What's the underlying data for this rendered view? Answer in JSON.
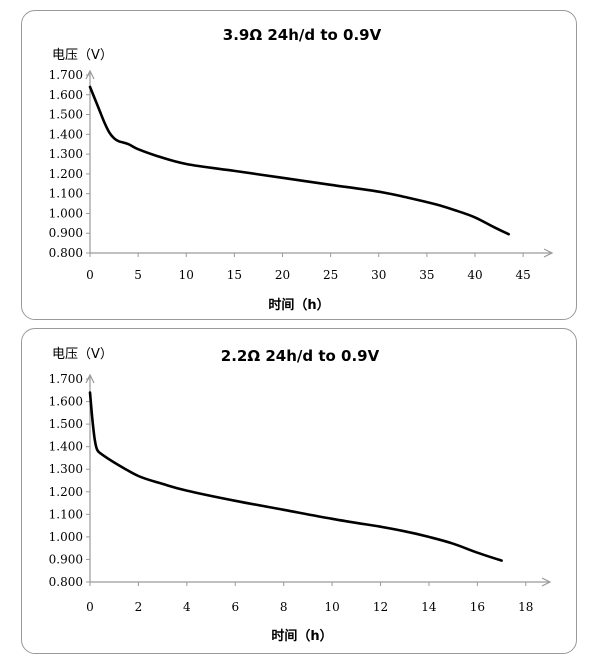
{
  "chart_data": [
    {
      "type": "line",
      "title": "3.9Ω 24h/d to 0.9V",
      "ylabel": "电压（V）",
      "xlabel": "时间（h）",
      "ylim": [
        0.8,
        1.7
      ],
      "xlim": [
        0,
        48
      ],
      "yticks": [
        "0.800",
        "0.900",
        "1.000",
        "1.100",
        "1.200",
        "1.300",
        "1.400",
        "1.500",
        "1.600",
        "1.700"
      ],
      "xticks": [
        "0",
        "5",
        "10",
        "15",
        "20",
        "25",
        "30",
        "35",
        "40",
        "45"
      ],
      "series": [
        {
          "x": [
            0,
            0.5,
            1,
            1.5,
            2,
            2.5,
            3,
            4,
            5,
            7,
            10,
            15,
            20,
            25,
            30,
            33,
            36,
            38,
            40,
            42,
            43.5
          ],
          "values": [
            1.64,
            1.58,
            1.52,
            1.46,
            1.41,
            1.38,
            1.365,
            1.35,
            1.325,
            1.29,
            1.25,
            1.215,
            1.18,
            1.145,
            1.11,
            1.08,
            1.045,
            1.015,
            0.98,
            0.93,
            0.895
          ]
        }
      ]
    },
    {
      "type": "line",
      "title": "2.2Ω 24h/d to 0.9V",
      "ylabel": "电压（V）",
      "xlabel": "时间（h）",
      "ylim": [
        0.8,
        1.7
      ],
      "xlim": [
        0,
        19
      ],
      "yticks": [
        "0.800",
        "0.900",
        "1.000",
        "1.100",
        "1.200",
        "1.300",
        "1.400",
        "1.500",
        "1.600",
        "1.700"
      ],
      "xticks": [
        "0",
        "2",
        "4",
        "6",
        "8",
        "10",
        "12",
        "14",
        "16",
        "18"
      ],
      "series": [
        {
          "x": [
            0,
            0.1,
            0.2,
            0.3,
            0.5,
            1,
            2,
            3,
            4,
            6,
            8,
            10,
            12,
            13,
            14,
            15,
            16,
            17
          ],
          "values": [
            1.64,
            1.52,
            1.43,
            1.385,
            1.365,
            1.33,
            1.27,
            1.235,
            1.205,
            1.16,
            1.12,
            1.08,
            1.045,
            1.025,
            1.0,
            0.97,
            0.93,
            0.895
          ]
        }
      ]
    }
  ]
}
